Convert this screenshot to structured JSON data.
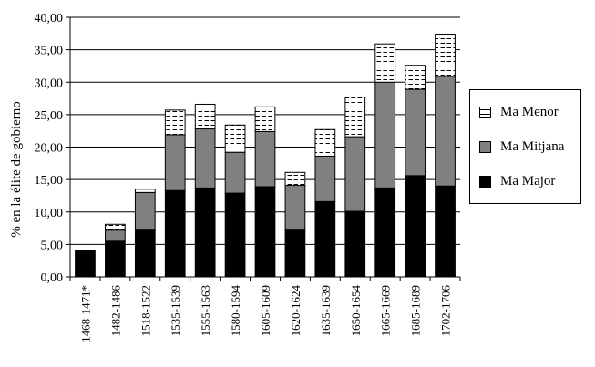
{
  "chart_data": {
    "type": "bar",
    "stacked": true,
    "ylabel": "% en la élite de gobierno",
    "xlabel": "",
    "ylim": [
      0,
      40
    ],
    "yticks": [
      "0,00",
      "5,00",
      "10,00",
      "15,00",
      "20,00",
      "25,00",
      "30,00",
      "35,00",
      "40,00"
    ],
    "categories": [
      "1468-1471*",
      "1482-1486",
      "1518-1522",
      "1535-1539",
      "1555-1563",
      "1580-1594",
      "1605-1609",
      "1620-1624",
      "1635-1639",
      "1650-1654",
      "1665-1669",
      "1685-1689",
      "1702-1706"
    ],
    "series": [
      {
        "name": "Ma Major",
        "color": "#000000",
        "pattern": "solid",
        "values": [
          4.1,
          5.5,
          7.2,
          13.3,
          13.7,
          12.9,
          13.9,
          7.2,
          11.6,
          10.1,
          13.7,
          15.6,
          14.0
        ]
      },
      {
        "name": "Ma Mitjana",
        "color": "#808080",
        "pattern": "solid",
        "values": [
          0.0,
          1.7,
          5.8,
          8.6,
          9.1,
          6.3,
          8.5,
          6.9,
          7.0,
          11.5,
          16.3,
          13.3,
          16.9
        ]
      },
      {
        "name": "Ma Menor",
        "color": "#ffffff",
        "pattern": "dashes",
        "values": [
          0.0,
          0.9,
          0.5,
          3.8,
          3.8,
          4.2,
          3.8,
          2.0,
          4.1,
          6.1,
          5.9,
          3.7,
          6.5
        ]
      }
    ],
    "grid": "horizontal",
    "legend_position": "right"
  },
  "legend": {
    "items": [
      {
        "label": "Ma Menor",
        "series": 2
      },
      {
        "label": "Ma Mitjana",
        "series": 1
      },
      {
        "label": "Ma Major",
        "series": 0
      }
    ]
  }
}
